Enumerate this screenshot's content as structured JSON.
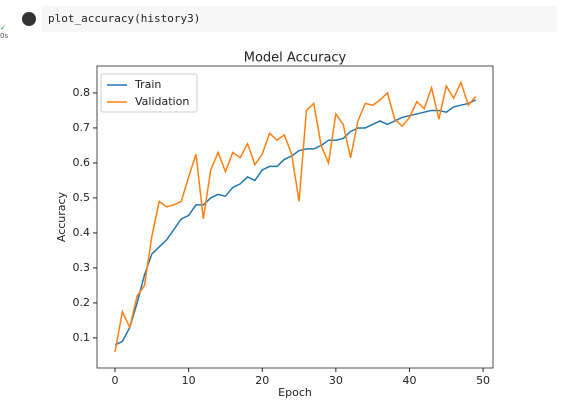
{
  "cell": {
    "code": "plot_accuracy(history3)",
    "status": "0s"
  },
  "chart_data": {
    "type": "line",
    "title": "Model Accuracy",
    "x_label": "Epoch",
    "y_label": "Accuracy",
    "x": [
      0,
      1,
      2,
      3,
      4,
      5,
      6,
      7,
      8,
      9,
      10,
      11,
      12,
      13,
      14,
      15,
      16,
      17,
      18,
      19,
      20,
      21,
      22,
      23,
      24,
      25,
      26,
      27,
      28,
      29,
      30,
      31,
      32,
      33,
      34,
      35,
      36,
      37,
      38,
      39,
      40,
      41,
      42,
      43,
      44,
      45,
      46,
      47,
      48,
      49
    ],
    "series": [
      {
        "name": "Train",
        "color": "#1f77b4",
        "values": [
          0.08,
          0.09,
          0.13,
          0.2,
          0.28,
          0.34,
          0.36,
          0.38,
          0.41,
          0.44,
          0.45,
          0.48,
          0.48,
          0.5,
          0.51,
          0.505,
          0.53,
          0.54,
          0.56,
          0.55,
          0.58,
          0.59,
          0.59,
          0.61,
          0.62,
          0.635,
          0.64,
          0.64,
          0.65,
          0.665,
          0.665,
          0.67,
          0.69,
          0.7,
          0.7,
          0.71,
          0.72,
          0.71,
          0.72,
          0.73,
          0.735,
          0.74,
          0.745,
          0.75,
          0.75,
          0.745,
          0.76,
          0.765,
          0.77,
          0.78
        ]
      },
      {
        "name": "Validation",
        "color": "#ff7f0e",
        "values": [
          0.06,
          0.175,
          0.13,
          0.22,
          0.25,
          0.39,
          0.49,
          0.475,
          0.48,
          0.49,
          0.56,
          0.625,
          0.44,
          0.58,
          0.63,
          0.575,
          0.63,
          0.615,
          0.655,
          0.595,
          0.625,
          0.685,
          0.665,
          0.68,
          0.625,
          0.49,
          0.75,
          0.77,
          0.65,
          0.6,
          0.74,
          0.71,
          0.615,
          0.72,
          0.77,
          0.765,
          0.78,
          0.8,
          0.725,
          0.705,
          0.73,
          0.775,
          0.755,
          0.815,
          0.725,
          0.82,
          0.785,
          0.83,
          0.765,
          0.79
        ]
      }
    ],
    "xlim": [
      -2.45,
      51.35
    ],
    "xticks": [
      0,
      10,
      20,
      30,
      40,
      50
    ],
    "ylim": [
      0.014,
      0.877
    ],
    "yticks": [
      0.1,
      0.2,
      0.3,
      0.4,
      0.5,
      0.6,
      0.7,
      0.8
    ],
    "legend": "upper left",
    "grid": false
  }
}
